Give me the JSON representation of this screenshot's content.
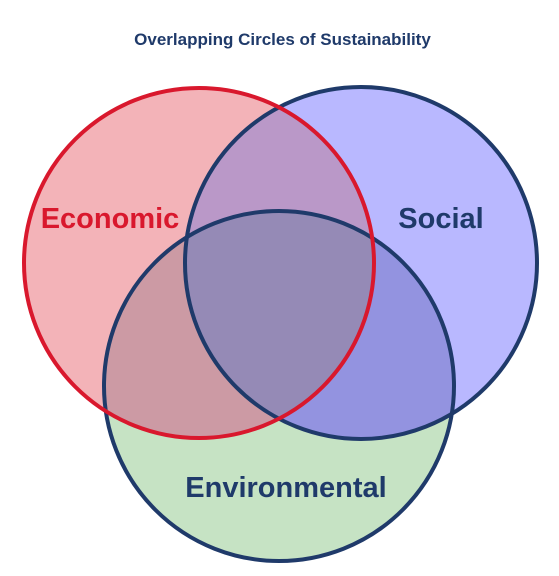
{
  "diagram": {
    "title": "Overlapping  Circles of Sustainability",
    "circles": [
      {
        "id": "economic",
        "label": "Economic",
        "fill": "#f3b3b8",
        "stroke": "#d9182d",
        "text_color": "#d9182d"
      },
      {
        "id": "social",
        "label": "Social",
        "fill": "#b9b8ff",
        "stroke": "#1f3a6a",
        "text_color": "#1f3a6a"
      },
      {
        "id": "environmental",
        "label": "Environmental",
        "fill": "#c6e3c4",
        "stroke": "#1f3a6a",
        "text_color": "#1f3a6a"
      }
    ],
    "overlaps": {
      "economic_social": "#ba98c8",
      "economic_environmental": "#cc9aa4",
      "social_environmental": "#9393e0",
      "center": "#958ab6"
    }
  }
}
